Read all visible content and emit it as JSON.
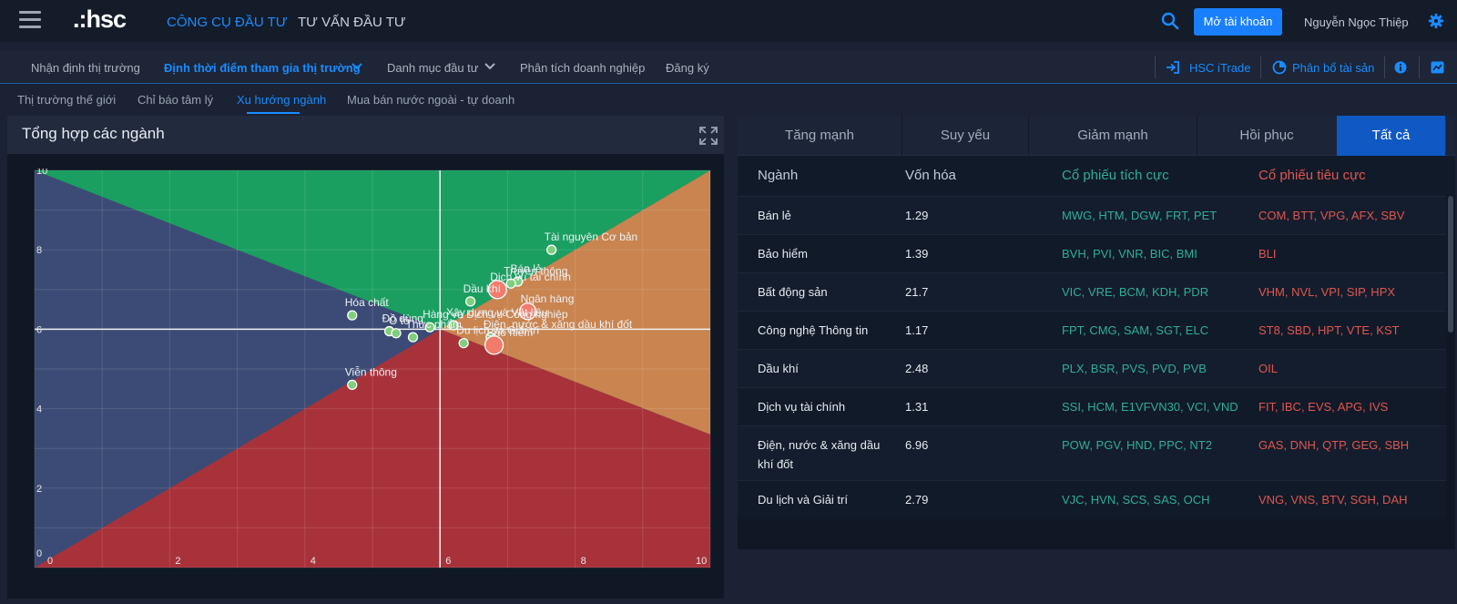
{
  "app": {
    "logo": ".:hsc"
  },
  "topnav": {
    "tools": "CÔNG CỤ ĐẦU TƯ",
    "advice": "TƯ VẤN ĐẦU TƯ",
    "open_account": "Mở tài khoản",
    "user": "Nguyễn Ngọc Thiệp"
  },
  "subnav": {
    "items": [
      "Nhận định thị trường",
      "Định thời điểm tham gia thị trường",
      "Danh mục đầu tư",
      "Phân tích doanh nghiệp",
      "Đăng ký"
    ],
    "itrade": "HSC iTrade",
    "allocation": "Phân bổ tài sản"
  },
  "thirdnav": {
    "items": [
      "Thị trường thế giới",
      "Chỉ báo tâm lý",
      "Xu hướng ngành",
      "Mua bán nước ngoài - tự doanh"
    ]
  },
  "panel": {
    "title": "Tổng hợp các ngành"
  },
  "colors": {
    "green": "#1a9f60",
    "orange": "#c98450",
    "red": "#a8323a",
    "blue": "#3c4b75",
    "point": "#7fcf7f",
    "point_big": "#f27b6b"
  },
  "chart_data": {
    "type": "scatter",
    "xlim": [
      0,
      10
    ],
    "ylim": [
      0,
      10
    ],
    "x_ticks": [
      "0",
      "2",
      "4",
      "6",
      "8",
      "10"
    ],
    "y_ticks": [
      "0",
      "2",
      "4",
      "6",
      "8",
      "10"
    ],
    "grid": true,
    "points": [
      {
        "label": "Tài nguyên Cơ bản",
        "x": 7.65,
        "y": 8.0
      },
      {
        "label": "Bán lẻ",
        "x": 7.15,
        "y": 7.2
      },
      {
        "label": "Truyền thông",
        "x": 7.05,
        "y": 7.15
      },
      {
        "label": "Dịch vụ tài chính",
        "x": 6.85,
        "y": 7.0
      },
      {
        "label": "Ngân hàng",
        "x": 7.3,
        "y": 6.45
      },
      {
        "label": "Dầu khí",
        "x": 6.45,
        "y": 6.7
      },
      {
        "label": "Hóa chất",
        "x": 4.7,
        "y": 6.35
      },
      {
        "label": "Xây dựng và Vật liệu",
        "x": 6.2,
        "y": 6.1
      },
      {
        "label": "Hàng và Dịch vụ Công nghiệp",
        "x": 5.85,
        "y": 6.05
      },
      {
        "label": "Đồ dùng",
        "x": 5.25,
        "y": 5.95
      },
      {
        "label": "Ô tô",
        "x": 5.35,
        "y": 5.9
      },
      {
        "label": "Điện, nước & xăng dầu khí đốt",
        "x": 6.75,
        "y": 5.8
      },
      {
        "label": "Thực phẩm",
        "x": 5.6,
        "y": 5.8
      },
      {
        "label": "Du lịch và Giải trí",
        "x": 6.35,
        "y": 5.65
      },
      {
        "label": "Bảo hiểm",
        "x": 6.8,
        "y": 5.6
      },
      {
        "label": "Viễn thông",
        "x": 4.7,
        "y": 4.6
      }
    ]
  },
  "tabs": [
    "Tăng mạnh",
    "Suy yếu",
    "Giảm mạnh",
    "Hồi phục",
    "Tất cả"
  ],
  "table": {
    "headers": [
      "Ngành",
      "Vốn hóa",
      "Cổ phiếu tích cực",
      "Cổ phiếu tiêu cực"
    ],
    "rows": [
      {
        "name": "Bán lẻ",
        "cap": "1.29",
        "pos": "MWG, HTM, DGW, FRT, PET",
        "neg": "COM, BTT, VPG, AFX, SBV"
      },
      {
        "name": "Bảo hiểm",
        "cap": "1.39",
        "pos": "BVH, PVI, VNR, BIC, BMI",
        "neg": "BLI"
      },
      {
        "name": "Bất động sản",
        "cap": "21.7",
        "pos": "VIC, VRE, BCM, KDH, PDR",
        "neg": "VHM, NVL, VPI, SIP, HPX"
      },
      {
        "name": "Công nghệ Thông tin",
        "cap": "1.17",
        "pos": "FPT, CMG, SAM, SGT, ELC",
        "neg": "ST8, SBD, HPT, VTE, KST"
      },
      {
        "name": "Dầu khí",
        "cap": "2.48",
        "pos": "PLX, BSR, PVS, PVD, PVB",
        "neg": "OIL"
      },
      {
        "name": "Dịch vụ tài chính",
        "cap": "1.31",
        "pos": "SSI, HCM, E1VFVN30, VCI, VND",
        "neg": "FIT, IBC, EVS, APG, IVS"
      },
      {
        "name": "Điện, nước & xăng dầu khí đốt",
        "cap": "6.96",
        "pos": "POW, PGV, HND, PPC, NT2",
        "neg": "GAS, DNH, QTP, GEG, SBH"
      },
      {
        "name": "Du lịch và Giải trí",
        "cap": "2.79",
        "pos": "VJC, HVN, SCS, SAS, OCH",
        "neg": "VNG, VNS, BTV, SGH, DAH"
      }
    ]
  }
}
